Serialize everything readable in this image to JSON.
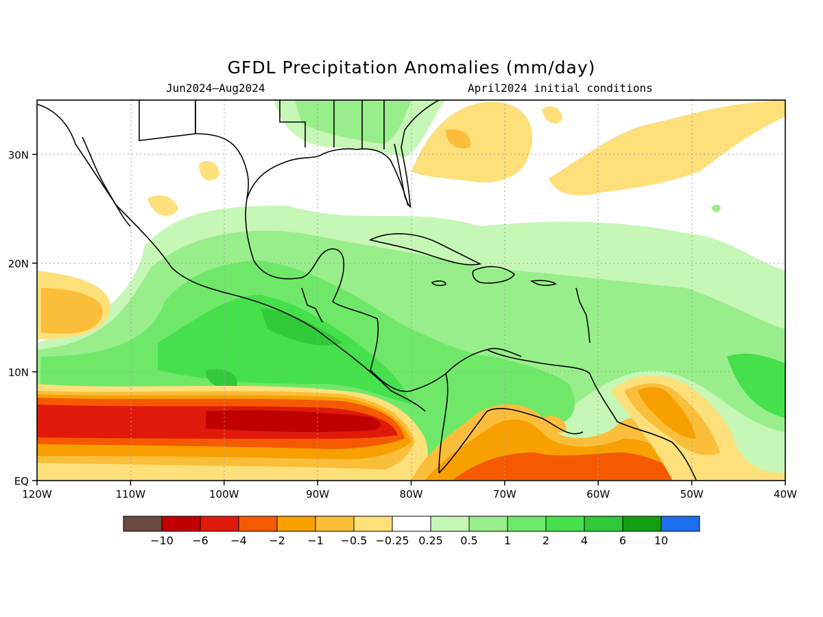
{
  "title": "GFDL Precipitation Anomalies (mm/day)",
  "subtitle_left": "Jun2024–Aug2024",
  "subtitle_right": "April2024 initial conditions",
  "map": {
    "lon_range": [
      -120,
      -40
    ],
    "lat_range": [
      0,
      35
    ],
    "lon_ticks": [
      {
        "value": -120,
        "label": "120W"
      },
      {
        "value": -110,
        "label": "110W"
      },
      {
        "value": -100,
        "label": "100W"
      },
      {
        "value": -90,
        "label": "90W"
      },
      {
        "value": -80,
        "label": "80W"
      },
      {
        "value": -70,
        "label": "70W"
      },
      {
        "value": -60,
        "label": "60W"
      },
      {
        "value": -50,
        "label": "50W"
      },
      {
        "value": -40,
        "label": "40W"
      }
    ],
    "lat_ticks": [
      {
        "value": 0,
        "label": "EQ"
      },
      {
        "value": 10,
        "label": "10N"
      },
      {
        "value": 20,
        "label": "20N"
      },
      {
        "value": 30,
        "label": "30N"
      }
    ],
    "grid": "dotted"
  },
  "colorbar": {
    "colors": [
      "#6b4a3f",
      "#c00000",
      "#e01a0a",
      "#f55a00",
      "#f7a000",
      "#fbbe3a",
      "#fde07a",
      "#ffffff",
      "#c6f7b6",
      "#98ee8a",
      "#6fe86a",
      "#45e04c",
      "#30c93a",
      "#12a012",
      "#1e6ef0"
    ],
    "labels": [
      "−10",
      "−6",
      "−4",
      "−2",
      "−1",
      "−0.5",
      "−0.25",
      "0.25",
      "0.5",
      "1",
      "2",
      "4",
      "6",
      "10"
    ]
  },
  "palette": {
    "dry_strong": "#c00000",
    "dry_medium": "#f55a00",
    "dry_weak": "#fde07a",
    "wet_weak": "#c6f7b6",
    "wet_medium": "#6fe86a",
    "wet_strong": "#30c93a"
  }
}
